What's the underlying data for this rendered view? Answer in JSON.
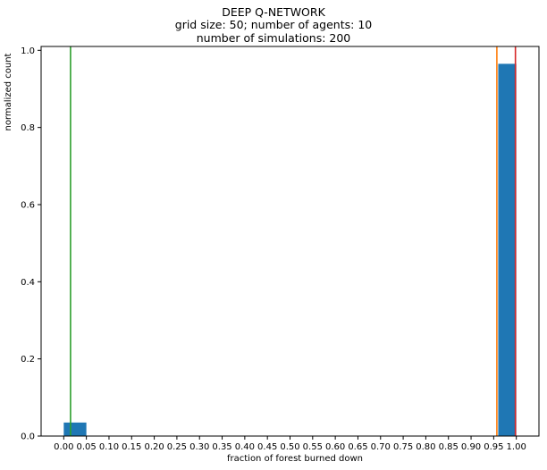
{
  "chart_data": {
    "type": "bar",
    "title_lines": [
      "DEEP Q-NETWORK",
      "grid size: 50; number of agents: 10",
      "number of simulations: 200"
    ],
    "xlabel": "fraction of forest burned down",
    "ylabel": "normalized count",
    "xlim": [
      -0.05,
      1.05
    ],
    "ylim": [
      0,
      1.01
    ],
    "x_ticks": [
      "0.00",
      "0.05",
      "0.10",
      "0.15",
      "0.20",
      "0.25",
      "0.30",
      "0.35",
      "0.40",
      "0.45",
      "0.50",
      "0.55",
      "0.60",
      "0.65",
      "0.70",
      "0.75",
      "0.80",
      "0.85",
      "0.90",
      "0.95",
      "1.00"
    ],
    "y_ticks": [
      "0.0",
      "0.2",
      "0.4",
      "0.6",
      "0.8",
      "1.0"
    ],
    "bars": [
      {
        "x_start": 0.0,
        "x_end": 0.05,
        "value": 0.035
      },
      {
        "x_start": 0.96,
        "x_end": 1.0,
        "value": 0.965
      }
    ],
    "bar_color": "#1f77b4",
    "vertical_lines": [
      {
        "x": 0.015,
        "color": "#2ca02c"
      },
      {
        "x": 0.957,
        "color": "#ff7f0e"
      },
      {
        "x": 0.998,
        "color": "#d62728"
      }
    ],
    "grid": false
  }
}
